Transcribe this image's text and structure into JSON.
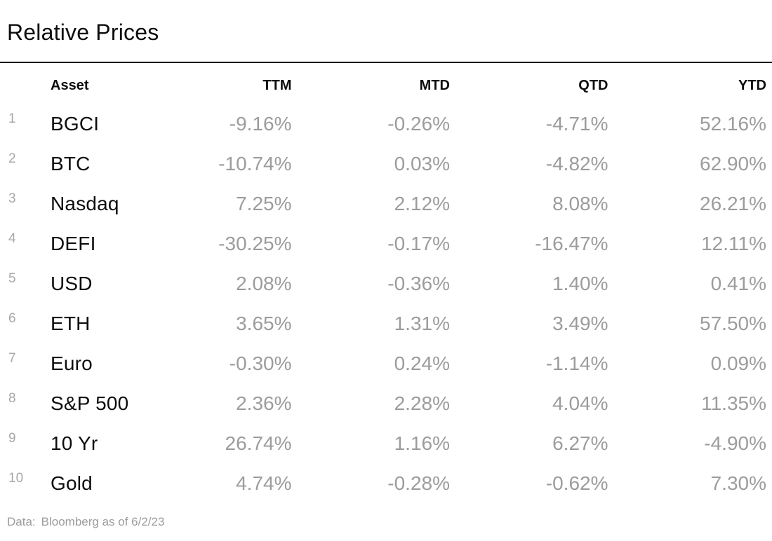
{
  "title": "Relative Prices",
  "table": {
    "columns": {
      "asset": "Asset",
      "ttm": "TTM",
      "mtd": "MTD",
      "qtd": "QTD",
      "ytd": "YTD"
    },
    "rows": [
      {
        "num": "1",
        "asset": "BGCI",
        "ttm": "-9.16%",
        "mtd": "-0.26%",
        "qtd": "-4.71%",
        "ytd": "52.16%"
      },
      {
        "num": "2",
        "asset": "BTC",
        "ttm": "-10.74%",
        "mtd": "0.03%",
        "qtd": "-4.82%",
        "ytd": "62.90%"
      },
      {
        "num": "3",
        "asset": "Nasdaq",
        "ttm": "7.25%",
        "mtd": "2.12%",
        "qtd": "8.08%",
        "ytd": "26.21%"
      },
      {
        "num": "4",
        "asset": "DEFI",
        "ttm": "-30.25%",
        "mtd": "-0.17%",
        "qtd": "-16.47%",
        "ytd": "12.11%"
      },
      {
        "num": "5",
        "asset": "USD",
        "ttm": "2.08%",
        "mtd": "-0.36%",
        "qtd": "1.40%",
        "ytd": "0.41%"
      },
      {
        "num": "6",
        "asset": "ETH",
        "ttm": "3.65%",
        "mtd": "1.31%",
        "qtd": "3.49%",
        "ytd": "57.50%"
      },
      {
        "num": "7",
        "asset": "Euro",
        "ttm": "-0.30%",
        "mtd": "0.24%",
        "qtd": "-1.14%",
        "ytd": "0.09%"
      },
      {
        "num": "8",
        "asset": "S&P 500",
        "ttm": "2.36%",
        "mtd": "2.28%",
        "qtd": "4.04%",
        "ytd": "11.35%"
      },
      {
        "num": "9",
        "asset": "10 Yr",
        "ttm": "26.74%",
        "mtd": "1.16%",
        "qtd": "6.27%",
        "ytd": "-4.90%"
      },
      {
        "num": "10",
        "asset": "Gold",
        "ttm": "4.74%",
        "mtd": "-0.28%",
        "qtd": "-0.62%",
        "ytd": "7.30%"
      }
    ]
  },
  "footer": {
    "label": "Data:",
    "source": "Bloomberg as of 6/2/23"
  },
  "colors": {
    "text_primary": "#0d0d0d",
    "text_value_gray": "#9c9c9c",
    "row_number_gray": "#a8a8a8",
    "rule": "#141414",
    "background": "#ffffff"
  },
  "chart_data": {
    "type": "table",
    "title": "Relative Prices",
    "columns": [
      "Asset",
      "TTM",
      "MTD",
      "QTD",
      "YTD"
    ],
    "units": "%",
    "rows": [
      [
        "BGCI",
        -9.16,
        -0.26,
        -4.71,
        52.16
      ],
      [
        "BTC",
        -10.74,
        0.03,
        -4.82,
        62.9
      ],
      [
        "Nasdaq",
        7.25,
        2.12,
        8.08,
        26.21
      ],
      [
        "DEFI",
        -30.25,
        -0.17,
        -16.47,
        12.11
      ],
      [
        "USD",
        2.08,
        -0.36,
        1.4,
        0.41
      ],
      [
        "ETH",
        3.65,
        1.31,
        3.49,
        57.5
      ],
      [
        "Euro",
        -0.3,
        0.24,
        -1.14,
        0.09
      ],
      [
        "S&P 500",
        2.36,
        2.28,
        4.04,
        11.35
      ],
      [
        "10 Yr",
        26.74,
        1.16,
        6.27,
        -4.9
      ],
      [
        "Gold",
        4.74,
        -0.28,
        -0.62,
        7.3
      ]
    ],
    "source_note": "Data: Bloomberg as of 6/2/23"
  }
}
